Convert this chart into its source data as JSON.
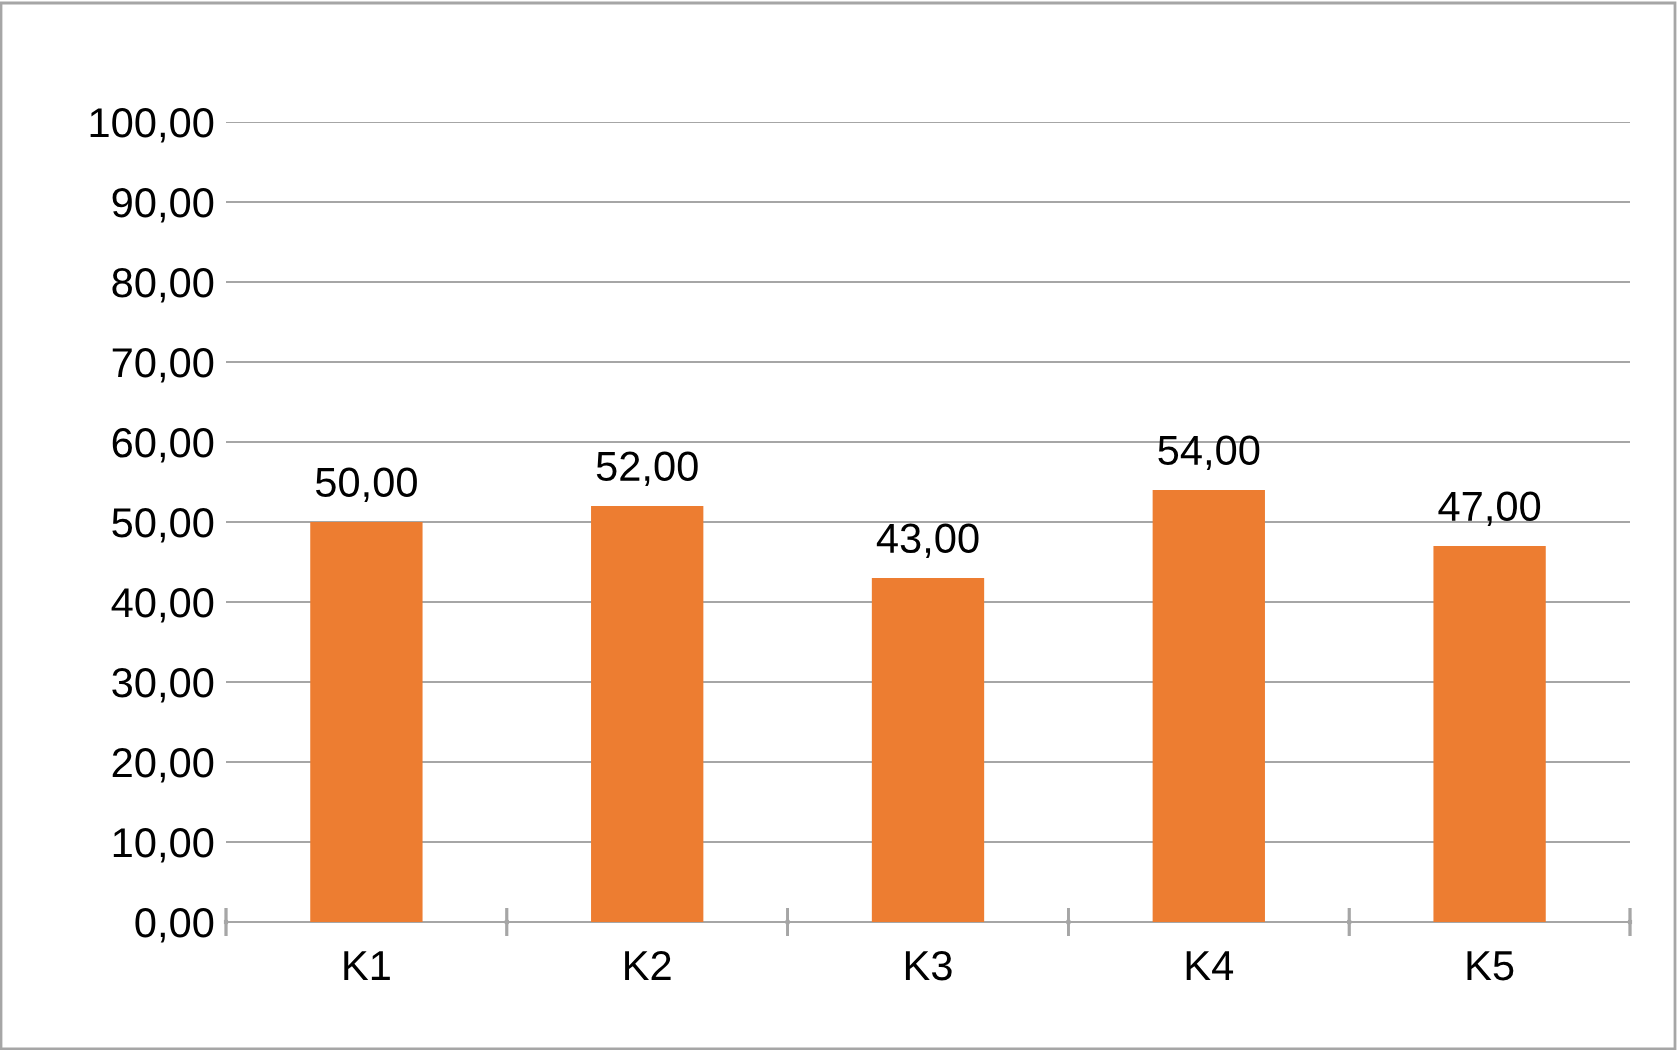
{
  "chart_data": {
    "type": "bar",
    "categories": [
      "K1",
      "K2",
      "K3",
      "K4",
      "K5"
    ],
    "values": [
      50,
      52,
      43,
      54,
      47
    ],
    "color": "#ed7d31",
    "value_labels": [
      "50,00",
      "52,00",
      "43,00",
      "54,00",
      "47,00"
    ],
    "ylim": [
      0,
      100
    ],
    "yticks": [
      {
        "value": 0,
        "label": "0,00"
      },
      {
        "value": 10,
        "label": "10,00"
      },
      {
        "value": 20,
        "label": "20,00"
      },
      {
        "value": 30,
        "label": "30,00"
      },
      {
        "value": 40,
        "label": "40,00"
      },
      {
        "value": 50,
        "label": "50,00"
      },
      {
        "value": 60,
        "label": "60,00"
      },
      {
        "value": 70,
        "label": "70,00"
      },
      {
        "value": 80,
        "label": "80,00"
      },
      {
        "value": 90,
        "label": "90,00"
      },
      {
        "value": 100,
        "label": "100,00"
      }
    ],
    "grid": "y",
    "legend": false
  }
}
